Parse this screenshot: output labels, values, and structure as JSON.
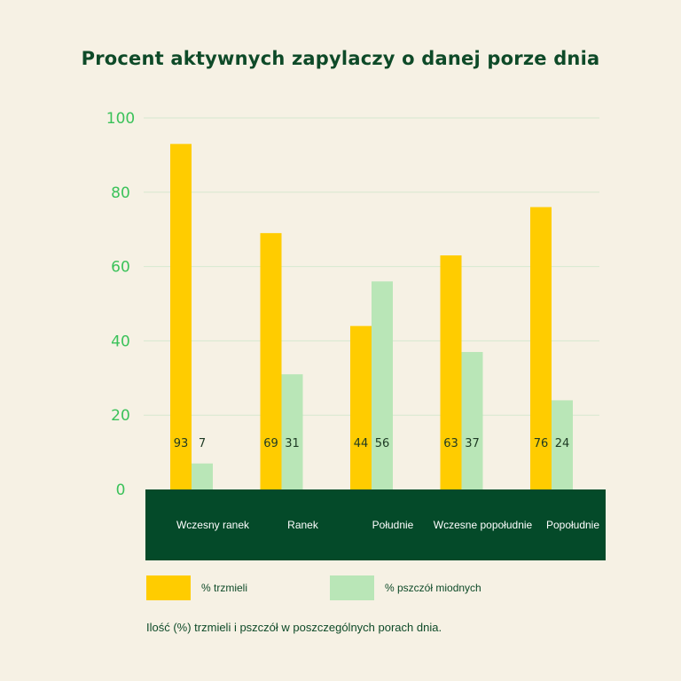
{
  "colors": {
    "background": "#f6f1e4",
    "bumblebee": "#ffcc00",
    "honeybee": "#b9e6b7",
    "axis_band": "#044a29",
    "gridline": "#d6e8cf",
    "tick_text": "#3bc25a",
    "title_text": "#0e4a28"
  },
  "chart_data": {
    "type": "bar",
    "title": "Procent aktywnych zapylaczy o danej porze dnia",
    "categories": [
      "Wczesny ranek",
      "Ranek",
      "Południe",
      "Wczesne popołudnie",
      "Popołudnie"
    ],
    "series": [
      {
        "name": "% trzmieli",
        "values": [
          93,
          69,
          44,
          63,
          76
        ]
      },
      {
        "name": "% pszczół miodnych",
        "values": [
          7,
          31,
          56,
          37,
          24
        ]
      }
    ],
    "data_labels": [
      [
        "93",
        "69",
        "44",
        "63",
        "76"
      ],
      [
        "7",
        "31",
        "56",
        "37",
        "24"
      ]
    ],
    "ylim": [
      0,
      100
    ],
    "yticks": [
      "0",
      "20",
      "40",
      "60",
      "80",
      "100"
    ],
    "xlabel": "",
    "ylabel": "",
    "grid": true,
    "legend_position": "bottom-left"
  },
  "legend": {
    "bumblebee_label": "% trzmieli",
    "honeybee_label": "% pszczół miodnych"
  },
  "caption": "Ilość (%) trzmieli i pszczół w poszczególnych porach dnia."
}
